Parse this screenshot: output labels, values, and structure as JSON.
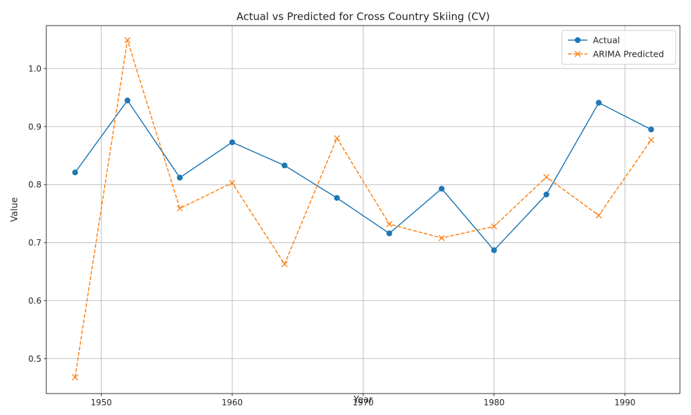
{
  "chart_data": {
    "type": "line",
    "title": "Actual vs Predicted for Cross Country Skiing (CV)",
    "xlabel": "Year",
    "ylabel": "Value",
    "x": [
      1948,
      1952,
      1956,
      1960,
      1964,
      1968,
      1972,
      1976,
      1980,
      1984,
      1988,
      1992
    ],
    "xlim": [
      1945.8,
      1994.2
    ],
    "ylim": [
      0.44,
      1.074
    ],
    "xticks": [
      1950,
      1960,
      1970,
      1980,
      1990
    ],
    "xtick_labels": [
      "1950",
      "1960",
      "1970",
      "1980",
      "1990"
    ],
    "yticks": [
      0.5,
      0.6,
      0.7,
      0.8,
      0.9,
      1.0
    ],
    "ytick_labels": [
      "0.5",
      "0.6",
      "0.7",
      "0.8",
      "0.9",
      "1.0"
    ],
    "grid": true,
    "legend_position": "top-right",
    "series": [
      {
        "name": "Actual",
        "color": "#1f77b4",
        "line_style": "solid",
        "marker": "circle",
        "values": [
          0.821,
          0.945,
          0.812,
          0.873,
          0.833,
          0.777,
          0.716,
          0.793,
          0.687,
          0.783,
          0.941,
          0.895
        ]
      },
      {
        "name": "ARIMA Predicted",
        "color": "#ff7f0e",
        "line_style": "dashed",
        "marker": "x",
        "values": [
          0.468,
          1.049,
          0.759,
          0.803,
          0.663,
          0.88,
          0.732,
          0.708,
          0.728,
          0.813,
          0.747,
          0.877
        ]
      }
    ]
  }
}
